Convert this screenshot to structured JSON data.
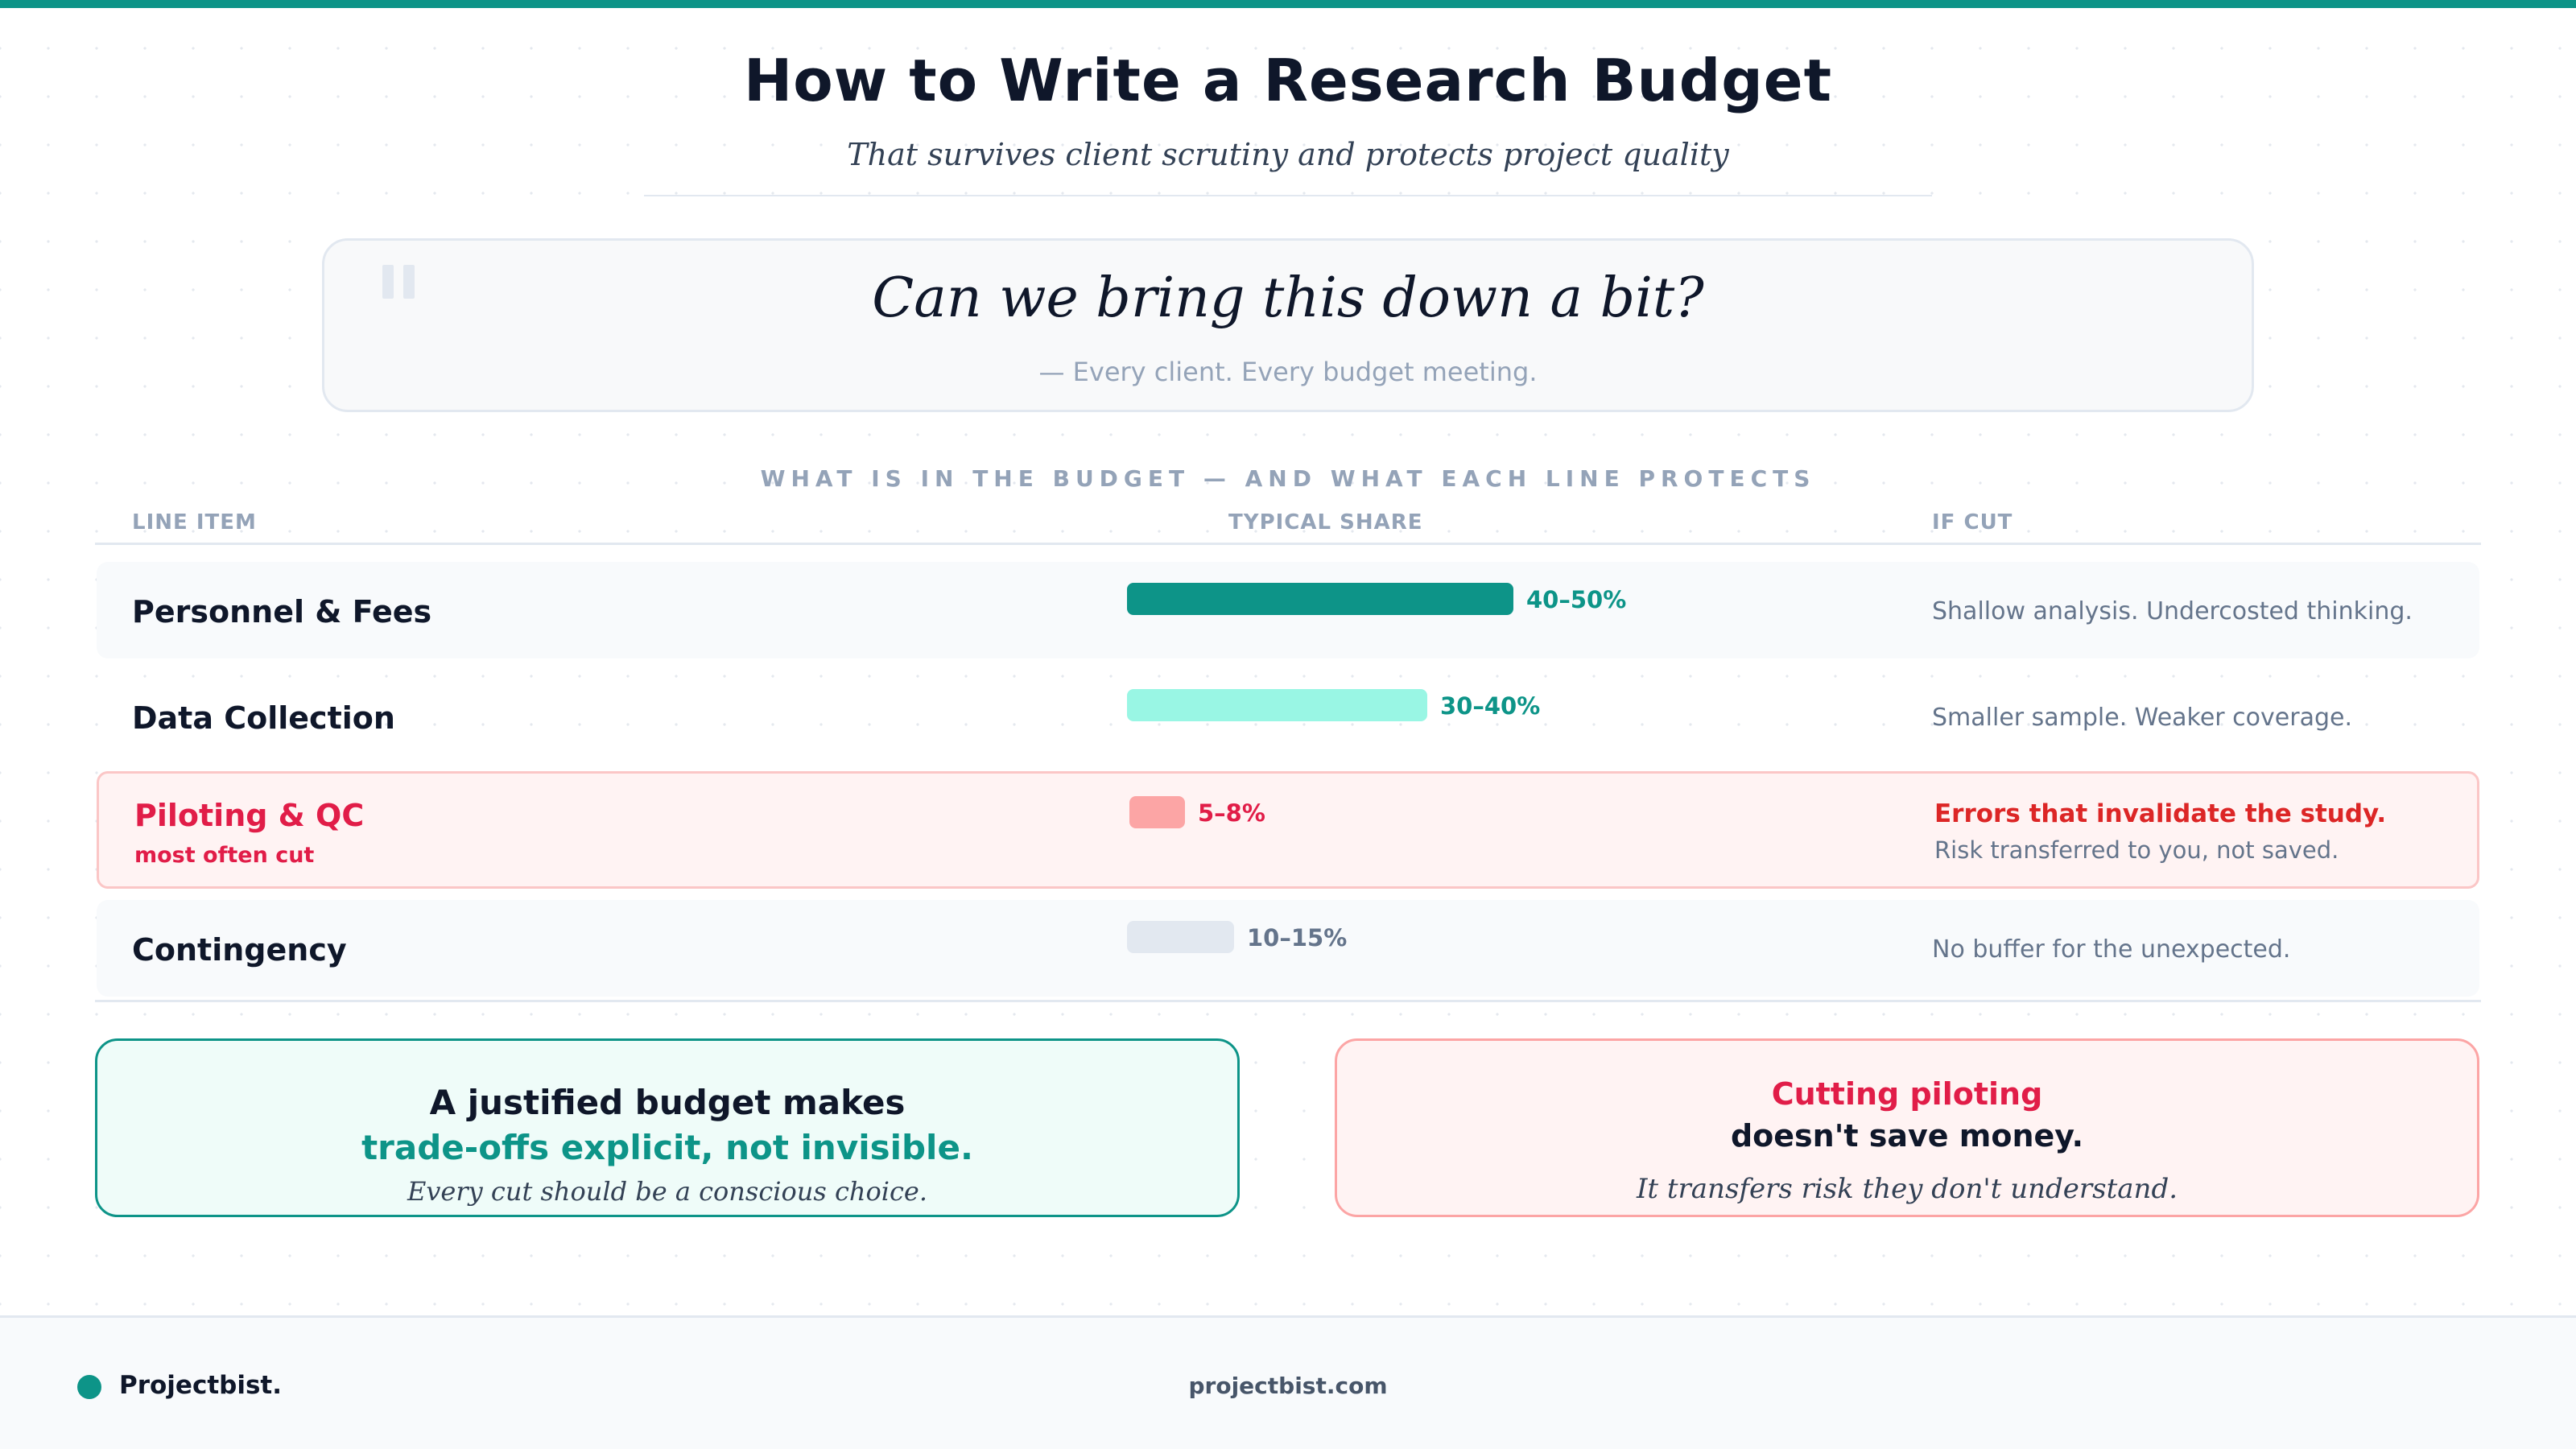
{
  "header": {
    "title": "How to Write a Research Budget",
    "subtitle": "That survives client scrutiny and protects project quality"
  },
  "quote": {
    "text": "Can we bring this down a bit?",
    "attribution": "— Every client. Every budget meeting."
  },
  "table": {
    "section_label": "WHAT IS IN THE BUDGET — AND WHAT EACH LINE PROTECTS",
    "columns": [
      "LINE ITEM",
      "TYPICAL SHARE",
      "IF CUT"
    ],
    "rows": [
      {
        "name": "Personnel & Fees",
        "share": "40–50%",
        "share_fraction": 0.45,
        "if_cut": "Shallow analysis. Undercosted thinking.",
        "bar_color": "#0d9488",
        "label_color": "#0d9488"
      },
      {
        "name": "Data Collection",
        "share": "30–40%",
        "share_fraction": 0.35,
        "if_cut": "Smaller sample. Weaker coverage.",
        "bar_color": "#99f6e4",
        "label_color": "#0d9488"
      },
      {
        "name": "Piloting & QC",
        "note": "most often cut",
        "share": "5–8%",
        "share_fraction": 0.065,
        "if_cut_strong": "Errors that invalidate the study.",
        "if_cut": "Risk transferred to you, not saved.",
        "bar_color": "#fca5a5",
        "label_color": "#e11d48"
      },
      {
        "name": "Contingency",
        "share": "10–15%",
        "share_fraction": 0.125,
        "if_cut": "No buffer for the unexpected.",
        "bar_color": "#e2e8f0",
        "label_color": "#64748b"
      }
    ]
  },
  "cards": {
    "left": {
      "line1": "A justified budget makes",
      "line2": "trade-offs explicit, not invisible.",
      "line3": "Every cut should be a conscious choice."
    },
    "right": {
      "line1": "Cutting piloting",
      "line2": "doesn't save money.",
      "line3": "It transfers risk they don't understand."
    }
  },
  "footer": {
    "brand": "Projectbist.",
    "site": "projectbist.com"
  },
  "colors": {
    "accent": "#0d9488",
    "alert": "#e11d48",
    "ink": "#0f172a"
  }
}
